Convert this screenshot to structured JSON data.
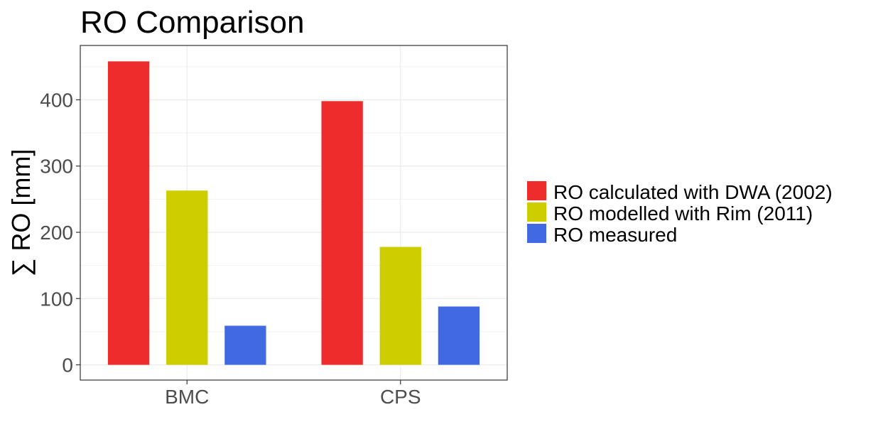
{
  "chart_data": {
    "type": "bar",
    "title": "RO Comparison",
    "xlabel": "",
    "ylabel": "∑ RO [mm]",
    "categories": [
      "BMC",
      "CPS"
    ],
    "series": [
      {
        "name": "RO calculated with DWA (2002)",
        "values": [
          458,
          398
        ],
        "color": "#EE2C2C"
      },
      {
        "name": "RO modelled with Rim (2011)",
        "values": [
          263,
          178
        ],
        "color": "#CDCD00"
      },
      {
        "name": "RO measured",
        "values": [
          59,
          88
        ],
        "color": "#4169E1"
      }
    ],
    "ylim": [
      -23,
      482
    ],
    "yticks": [
      0,
      100,
      200,
      300,
      400
    ],
    "grid": true,
    "legend_position": "right"
  }
}
